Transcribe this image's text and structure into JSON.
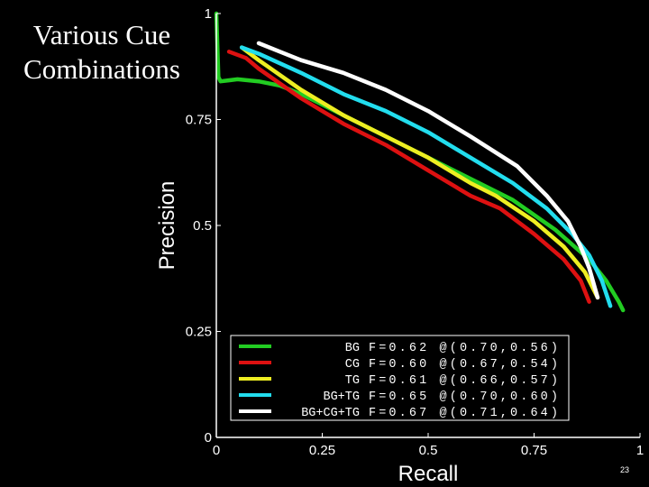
{
  "slide": {
    "title_line1": "Various Cue",
    "title_line2": "Combinations",
    "page_number": "23"
  },
  "chart_data": {
    "type": "line",
    "title": "",
    "xlabel": "Recall",
    "ylabel": "Precision",
    "xlim": [
      0,
      1
    ],
    "ylim": [
      0,
      1
    ],
    "xticks": [
      0,
      0.25,
      0.5,
      0.75,
      1
    ],
    "xtick_labels": [
      "0",
      "0.25",
      "0.5",
      "0.75",
      "1"
    ],
    "yticks": [
      0,
      0.25,
      0.5,
      0.75,
      1
    ],
    "ytick_labels": [
      "0",
      "0.25",
      "0.5",
      "0.75",
      "1"
    ],
    "grid": false,
    "legend_position": "bottom-center",
    "colors": {
      "plot_bg": "#000000",
      "axis": "#ffffff",
      "text": "#ffffff"
    },
    "series": [
      {
        "name": "BG",
        "legend": "BG F=0.62 @(0.70,0.56)",
        "color": "#22cc22",
        "x": [
          0.0,
          0.005,
          0.01,
          0.05,
          0.1,
          0.15,
          0.2,
          0.3,
          0.4,
          0.5,
          0.6,
          0.7,
          0.8,
          0.88,
          0.92,
          0.95,
          0.96
        ],
        "y": [
          1.0,
          0.85,
          0.84,
          0.845,
          0.84,
          0.83,
          0.81,
          0.76,
          0.71,
          0.66,
          0.61,
          0.56,
          0.49,
          0.42,
          0.37,
          0.32,
          0.3
        ]
      },
      {
        "name": "CG",
        "legend": "CG F=0.60 @(0.67,0.54)",
        "color": "#dd1111",
        "x": [
          0.03,
          0.07,
          0.1,
          0.2,
          0.3,
          0.4,
          0.5,
          0.6,
          0.67,
          0.75,
          0.82,
          0.86,
          0.88
        ],
        "y": [
          0.91,
          0.895,
          0.87,
          0.8,
          0.74,
          0.69,
          0.63,
          0.57,
          0.54,
          0.48,
          0.42,
          0.37,
          0.32
        ]
      },
      {
        "name": "TG",
        "legend": "TG F=0.61 @(0.66,0.57)",
        "color": "#eeee22",
        "x": [
          0.06,
          0.1,
          0.2,
          0.3,
          0.4,
          0.5,
          0.6,
          0.66,
          0.75,
          0.82,
          0.87,
          0.9
        ],
        "y": [
          0.92,
          0.89,
          0.82,
          0.76,
          0.71,
          0.66,
          0.6,
          0.57,
          0.51,
          0.45,
          0.39,
          0.33
        ]
      },
      {
        "name": "BG+TG",
        "legend": "BG+TG F=0.65 @(0.70,0.60)",
        "color": "#22ddee",
        "x": [
          0.06,
          0.1,
          0.2,
          0.3,
          0.4,
          0.5,
          0.6,
          0.7,
          0.78,
          0.84,
          0.88,
          0.91,
          0.93
        ],
        "y": [
          0.92,
          0.905,
          0.86,
          0.81,
          0.77,
          0.72,
          0.66,
          0.6,
          0.54,
          0.48,
          0.43,
          0.37,
          0.31
        ]
      },
      {
        "name": "BG+CG+TG",
        "legend": "BG+CG+TG F=0.67 @(0.71,0.64)",
        "color": "#ffffff",
        "x": [
          0.1,
          0.15,
          0.2,
          0.3,
          0.4,
          0.5,
          0.6,
          0.71,
          0.78,
          0.83,
          0.86,
          0.88,
          0.9
        ],
        "y": [
          0.93,
          0.91,
          0.89,
          0.86,
          0.82,
          0.77,
          0.71,
          0.64,
          0.57,
          0.51,
          0.45,
          0.4,
          0.33
        ]
      }
    ]
  }
}
